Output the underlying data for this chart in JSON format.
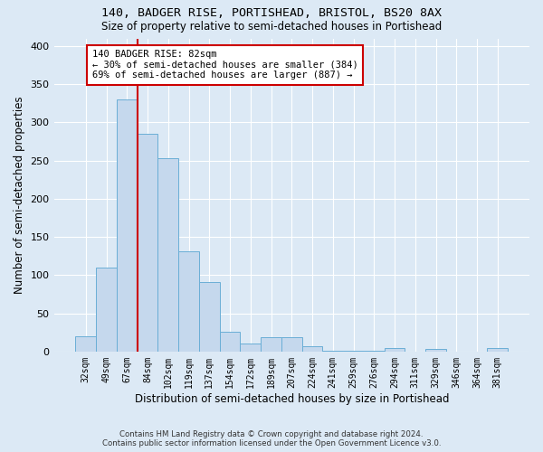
{
  "title1": "140, BADGER RISE, PORTISHEAD, BRISTOL, BS20 8AX",
  "title2": "Size of property relative to semi-detached houses in Portishead",
  "xlabel": "Distribution of semi-detached houses by size in Portishead",
  "ylabel": "Number of semi-detached properties",
  "categories": [
    "32sqm",
    "49sqm",
    "67sqm",
    "84sqm",
    "102sqm",
    "119sqm",
    "137sqm",
    "154sqm",
    "172sqm",
    "189sqm",
    "207sqm",
    "224sqm",
    "241sqm",
    "259sqm",
    "276sqm",
    "294sqm",
    "311sqm",
    "329sqm",
    "346sqm",
    "364sqm",
    "381sqm"
  ],
  "values": [
    20,
    110,
    330,
    285,
    253,
    131,
    91,
    26,
    11,
    19,
    19,
    7,
    1,
    1,
    1,
    4,
    0,
    3,
    0,
    0,
    5
  ],
  "bar_color": "#c5d8ed",
  "bar_edge_color": "#6aaed6",
  "vline_color": "#cc0000",
  "vline_xindex": 3,
  "annotation_text": "140 BADGER RISE: 82sqm\n← 30% of semi-detached houses are smaller (384)\n69% of semi-detached houses are larger (887) →",
  "annotation_box_color": "#ffffff",
  "annotation_box_edge": "#cc0000",
  "footnote1": "Contains HM Land Registry data © Crown copyright and database right 2024.",
  "footnote2": "Contains public sector information licensed under the Open Government Licence v3.0.",
  "ylim": [
    0,
    410
  ],
  "yticks": [
    0,
    50,
    100,
    150,
    200,
    250,
    300,
    350,
    400
  ],
  "background_color": "#dce9f5",
  "grid_color": "#ffffff"
}
